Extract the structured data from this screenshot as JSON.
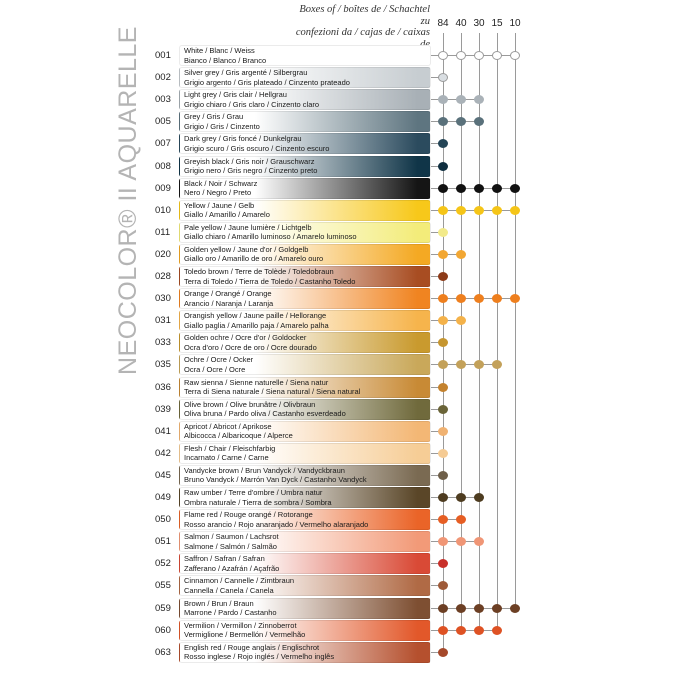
{
  "brand": "NEOCOLOR® II AQUARELLE",
  "header": {
    "line1": "Boxes of / boîtes de / Schachtel zu",
    "line2": "confezioni da / cajas de / caixas de",
    "boxes": [
      "84",
      "40",
      "30",
      "15",
      "10"
    ]
  },
  "colors": [
    {
      "code": "001",
      "line1": "White / Blanc / Weiss",
      "line2": "Bianco / Blanco / Branco",
      "swatch": "#ffffff",
      "dot": "#ffffff",
      "boxes": [
        true,
        true,
        true,
        true,
        true
      ]
    },
    {
      "code": "002",
      "line1": "Silver grey / Gris argenté / Silbergrau",
      "line2": "Grigio argento / Gris plateado / Cinzento prateado",
      "swatch": "#c7cdd1",
      "dot": "#d9dee2",
      "boxes": [
        true,
        false,
        false,
        false,
        false
      ]
    },
    {
      "code": "003",
      "line1": "Light grey / Gris clair / Hellgrau",
      "line2": "Grigio chiaro / Gris claro / Cinzento claro",
      "swatch": "#a8b0b6",
      "dot": "#aab2b8",
      "boxes": [
        true,
        true,
        true,
        false,
        false
      ]
    },
    {
      "code": "005",
      "line1": "Grey / Gris / Grau",
      "line2": "Grigio / Gris / Cinzento",
      "swatch": "#5e7580",
      "dot": "#5a717b",
      "boxes": [
        true,
        true,
        true,
        false,
        false
      ]
    },
    {
      "code": "007",
      "line1": "Dark grey / Gris foncé / Dunkelgrau",
      "line2": "Grigio scuro / Gris oscuro / Cinzento escuro",
      "swatch": "#2b4b5e",
      "dot": "#244556",
      "boxes": [
        true,
        false,
        false,
        false,
        false
      ]
    },
    {
      "code": "008",
      "line1": "Greyish black / Gris noir / Grauschwarz",
      "line2": "Grigio nero / Gris negro / Cinzento preto",
      "swatch": "#103548",
      "dot": "#0e2e3f",
      "boxes": [
        true,
        false,
        false,
        false,
        false
      ]
    },
    {
      "code": "009",
      "line1": "Black / Noir / Schwarz",
      "line2": "Nero / Negro / Preto",
      "swatch": "#151515",
      "dot": "#111111",
      "boxes": [
        true,
        true,
        true,
        true,
        true
      ]
    },
    {
      "code": "010",
      "line1": "Yellow / Jaune / Gelb",
      "line2": "Giallo / Amarillo / Amarelo",
      "swatch": "#f7c81a",
      "dot": "#f5c518",
      "boxes": [
        true,
        true,
        true,
        true,
        true
      ]
    },
    {
      "code": "011",
      "line1": "Pale yellow / Jaune lumière / Lichtgelb",
      "line2": "Giallo chiaro / Amarillo luminoso / Amarelo luminoso",
      "swatch": "#f3ec7a",
      "dot": "#f2ea8a",
      "boxes": [
        true,
        false,
        false,
        false,
        false
      ]
    },
    {
      "code": "020",
      "line1": "Golden yellow / Jaune d'or / Goldgelb",
      "line2": "Giallo oro / Amarillo de oro / Amarelo ouro",
      "swatch": "#f4a923",
      "dot": "#f2a733",
      "boxes": [
        true,
        true,
        false,
        false,
        false
      ]
    },
    {
      "code": "028",
      "line1": "Toledo brown / Terre de Tolède / Toledobraun",
      "line2": "Terra di Toledo / Tierra de Toledo / Castanho Toledo",
      "swatch": "#a84d22",
      "dot": "#8c3a18",
      "boxes": [
        true,
        false,
        false,
        false,
        false
      ]
    },
    {
      "code": "030",
      "line1": "Orange / Orangé / Orange",
      "line2": "Arancio / Naranja / Laranja",
      "swatch": "#f08421",
      "dot": "#ee7f1e",
      "boxes": [
        true,
        true,
        true,
        true,
        true
      ]
    },
    {
      "code": "031",
      "line1": "Orangish yellow / Jaune paille / Hellorange",
      "line2": "Giallo paglia / Amarillo paja / Amarelo palha",
      "swatch": "#f6b44c",
      "dot": "#f4b24a",
      "boxes": [
        true,
        true,
        false,
        false,
        false
      ]
    },
    {
      "code": "033",
      "line1": "Golden ochre / Ocre d'or / Goldocker",
      "line2": "Ocra d'oro / Ocre de oro / Ocre dourado",
      "swatch": "#c99a2e",
      "dot": "#c69630",
      "boxes": [
        true,
        false,
        false,
        false,
        false
      ]
    },
    {
      "code": "035",
      "line1": "Ochre / Ocre / Ocker",
      "line2": "Ocra / Ocre / Ocre",
      "swatch": "#c9a85a",
      "dot": "#c3a15a",
      "boxes": [
        true,
        true,
        true,
        true,
        false
      ]
    },
    {
      "code": "036",
      "line1": "Raw sienna / Sienne naturelle / Siena natur",
      "line2": "Terra di Siena naturale / Siena natural / Siena natural",
      "swatch": "#c88a35",
      "dot": "#c4822e",
      "boxes": [
        true,
        false,
        false,
        false,
        false
      ]
    },
    {
      "code": "039",
      "line1": "Olive brown / Olive brunâtre / Olivbraun",
      "line2": "Oliva bruna / Pardo oliva / Castanho esverdeado",
      "swatch": "#706a3c",
      "dot": "#6a6438",
      "boxes": [
        true,
        false,
        false,
        false,
        false
      ]
    },
    {
      "code": "041",
      "line1": "Apricot / Abricot / Aprikose",
      "line2": "Albicocca / Albaricoque / Alperce",
      "swatch": "#f3b775",
      "dot": "#f0b272",
      "boxes": [
        true,
        false,
        false,
        false,
        false
      ]
    },
    {
      "code": "042",
      "line1": "Flesh / Chair / Fleischfarbig",
      "line2": "Incarnato / Carne / Carne",
      "swatch": "#f6cd96",
      "dot": "#f5cb94",
      "boxes": [
        true,
        false,
        false,
        false,
        false
      ]
    },
    {
      "code": "045",
      "line1": "Vandycke brown / Brun Vandyck / Vandyckbraun",
      "line2": "Bruno Vandyck / Marrón Van Dyck / Castanho Vandyck",
      "swatch": "#7a6a52",
      "dot": "#6e5f49",
      "boxes": [
        true,
        false,
        false,
        false,
        false
      ]
    },
    {
      "code": "049",
      "line1": "Raw umber / Terre d'ombre / Umbra natur",
      "line2": "Ombra naturale / Tierra de sombra / Sombra",
      "swatch": "#5a4628",
      "dot": "#4e3c20",
      "boxes": [
        true,
        true,
        true,
        false,
        false
      ]
    },
    {
      "code": "050",
      "line1": "Flame red / Rouge orangé / Rotorange",
      "line2": "Rosso arancio / Rojo anaranjado / Vermelho alaranjado",
      "swatch": "#ea6428",
      "dot": "#e65e24",
      "boxes": [
        true,
        true,
        false,
        false,
        false
      ]
    },
    {
      "code": "051",
      "line1": "Salmon / Saumon / Lachsrot",
      "line2": "Salmone / Salmón / Salmão",
      "swatch": "#f29a78",
      "dot": "#f09676",
      "boxes": [
        true,
        true,
        true,
        false,
        false
      ]
    },
    {
      "code": "052",
      "line1": "Saffron / Safran / Safran",
      "line2": "Zafferano / Azafrán / Açafrão",
      "swatch": "#d94a36",
      "dot": "#c8302a",
      "boxes": [
        true,
        false,
        false,
        false,
        false
      ]
    },
    {
      "code": "055",
      "line1": "Cinnamon / Cannelle / Zimtbraun",
      "line2": "Cannella / Canela / Canela",
      "swatch": "#b06a45",
      "dot": "#9e5a38",
      "boxes": [
        true,
        false,
        false,
        false,
        false
      ]
    },
    {
      "code": "059",
      "line1": "Brown / Brun / Braun",
      "line2": "Marrone / Pardo / Castanho",
      "swatch": "#7e4f32",
      "dot": "#6c3f24",
      "boxes": [
        true,
        true,
        true,
        true,
        true
      ]
    },
    {
      "code": "060",
      "line1": "Vermilion / Vermillon / Zinnoberrot",
      "line2": "Vermiglione / Bermellón / Vermelhão",
      "swatch": "#e2582a",
      "dot": "#de5224",
      "boxes": [
        true,
        true,
        true,
        true,
        false
      ]
    },
    {
      "code": "063",
      "line1": "English red / Rouge anglais / Englischrot",
      "line2": "Rosso inglese / Rojo inglés / Vermelho inglês",
      "swatch": "#b5502e",
      "dot": "#a5482a",
      "boxes": [
        true,
        false,
        false,
        false,
        false
      ]
    }
  ]
}
